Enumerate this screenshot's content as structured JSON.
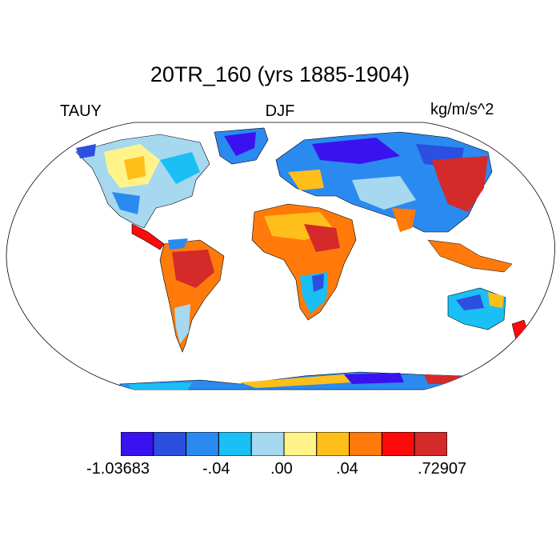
{
  "title": "20TR_160 (yrs 1885-1904)",
  "subtitle": {
    "left": "TAUY",
    "center": "DJF",
    "right": "kg/m/s^2"
  },
  "colorbar": {
    "colors": [
      "#3a12f0",
      "#2c4fe0",
      "#2a8af0",
      "#19bff5",
      "#a6d8f0",
      "#fff38a",
      "#ffbf1a",
      "#ff7a0a",
      "#ff0a0a",
      "#d42a2a"
    ],
    "labels": [
      "-1.03683",
      "-.04",
      ".00",
      ".04",
      ".72907"
    ]
  },
  "map": {
    "projection": "Robinson",
    "variable": "TAUY",
    "season": "DJF",
    "units": "kg/m/s^2"
  }
}
